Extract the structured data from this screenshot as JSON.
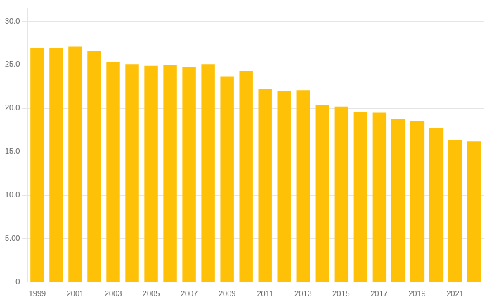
{
  "chart_data": {
    "type": "bar",
    "categories": [
      "1999",
      null,
      "2001",
      null,
      "2003",
      null,
      "2005",
      null,
      "2007",
      null,
      "2009",
      null,
      "2011",
      null,
      "2013",
      null,
      "2015",
      null,
      "2017",
      null,
      "2019",
      null,
      "2021",
      null
    ],
    "values": [
      26.9,
      26.9,
      27.1,
      26.6,
      25.3,
      25.1,
      24.9,
      25.0,
      24.8,
      25.1,
      23.7,
      24.3,
      22.2,
      22.0,
      22.1,
      20.4,
      20.2,
      19.6,
      19.5,
      18.8,
      18.5,
      17.7,
      16.3,
      16.2
    ],
    "color": "#FFC107",
    "ylim": [
      0,
      31.5
    ],
    "yticks": [
      0,
      {
        "value": 5,
        "label": "5.00"
      },
      {
        "value": 10,
        "label": "10.0"
      },
      {
        "value": 15,
        "label": "15.0"
      },
      {
        "value": 20,
        "label": "20.0"
      },
      {
        "value": 25,
        "label": "25.0"
      },
      {
        "value": 30,
        "label": "30.0"
      }
    ],
    "grid": true
  }
}
